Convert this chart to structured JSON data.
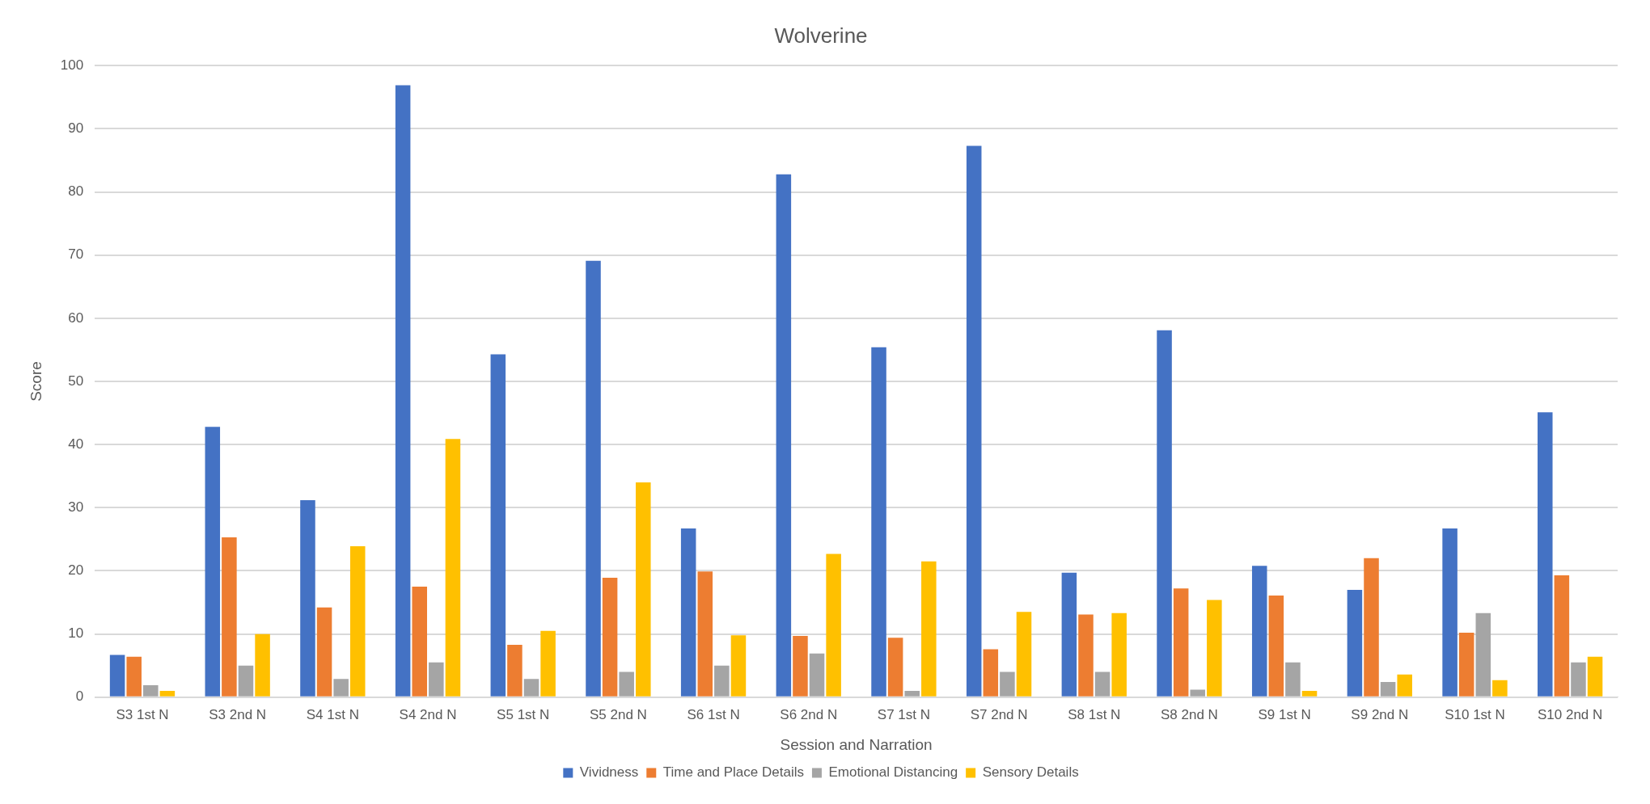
{
  "chart_data": {
    "type": "bar",
    "title": "Wolverine",
    "xlabel": "Session and Narration",
    "ylabel": "Score",
    "categories": [
      "S3 1st N",
      "S3 2nd N",
      "S4 1st N",
      "S4 2nd N",
      "S5 1st N",
      "S5 2nd N",
      "S6 1st N",
      "S6 2nd N",
      "S7 1st N",
      "S7 2nd N",
      "S8 1st N",
      "S8 2nd N",
      "S9 1st N",
      "S9 2nd N",
      "S10 1st N",
      "S10 2nd N"
    ],
    "series": [
      {
        "name": "Vividness",
        "color": "#4472c4",
        "values": [
          6.7,
          42.8,
          31.2,
          96.9,
          54.3,
          69.1,
          26.7,
          82.8,
          55.4,
          87.3,
          19.7,
          58.1,
          20.8,
          17.0,
          26.7,
          45.1
        ]
      },
      {
        "name": "Time and Place Details",
        "color": "#ed7d31",
        "values": [
          6.4,
          25.3,
          14.2,
          17.5,
          8.3,
          18.9,
          19.9,
          9.7,
          9.4,
          7.6,
          13.1,
          17.2,
          16.1,
          22.0,
          10.2,
          19.3
        ]
      },
      {
        "name": "Emotional Distancing",
        "color": "#a5a5a5",
        "values": [
          1.9,
          5.0,
          2.9,
          5.5,
          2.9,
          4.0,
          5.0,
          6.9,
          1.0,
          4.0,
          4.0,
          1.2,
          5.5,
          2.4,
          13.3,
          5.5
        ]
      },
      {
        "name": "Sensory Details",
        "color": "#ffc000",
        "values": [
          1.0,
          10.0,
          23.9,
          40.9,
          10.5,
          34.0,
          9.8,
          22.7,
          21.5,
          13.5,
          13.3,
          15.4,
          1.0,
          3.6,
          2.7,
          6.4
        ]
      }
    ],
    "ylim": [
      0,
      100
    ],
    "yticks": [
      0,
      10,
      20,
      30,
      40,
      50,
      60,
      70,
      80,
      90,
      100
    ],
    "grid": "y",
    "legend": "bottom"
  }
}
